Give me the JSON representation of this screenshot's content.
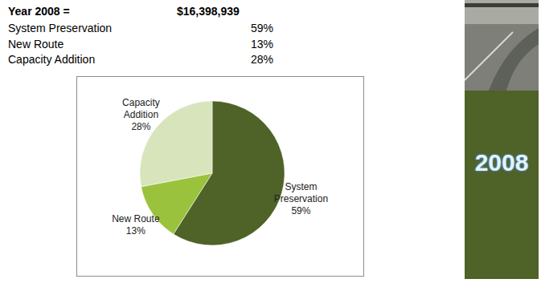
{
  "header": {
    "title": "Year 2008 =",
    "total": "$16,398,939"
  },
  "banner": "2008",
  "chart_data": {
    "type": "pie",
    "categories": [
      "System Preservation",
      "New Route",
      "Capacity Addition"
    ],
    "values": [
      59,
      13,
      28
    ],
    "value_labels": [
      "59%",
      "13%",
      "28%"
    ],
    "colors": [
      "#4f6228",
      "#9bc23c",
      "#d8e4bc"
    ],
    "data_labels": true
  }
}
